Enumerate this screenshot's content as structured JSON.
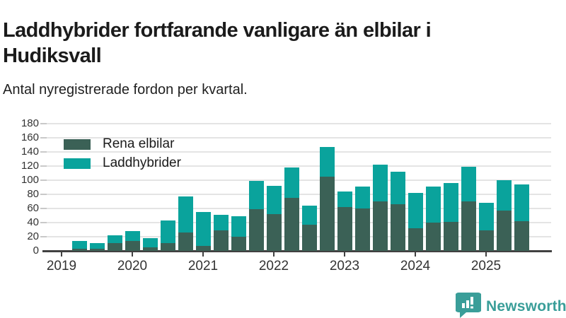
{
  "header": {
    "title": "Laddhybrider fortfarande vanligare än elbilar i Hudiksvall",
    "title_lines": [
      "Laddhybrider fortfarande vanligare än elbilar i",
      "Hudiksvall"
    ],
    "subtitle": "Antal nyregistrerade fordon per kvartal."
  },
  "legend": {
    "items": [
      {
        "label": "Rena elbilar",
        "color": "#3b6156"
      },
      {
        "label": "Laddhybrider",
        "color": "#0aa39c"
      }
    ]
  },
  "footer": {
    "brand": "Newsworthy",
    "brand_color": "#3a9e99",
    "logo_icon": "speech-bubble-bar-chart-icon"
  },
  "chart_data": {
    "type": "bar",
    "stacked": true,
    "title": "Laddhybrider fortfarande vanligare än elbilar i Hudiksvall",
    "subtitle": "Antal nyregistrerade fordon per kvartal.",
    "x": [
      "2019 Q1",
      "2019 Q2",
      "2019 Q3",
      "2019 Q4",
      "2020 Q1",
      "2020 Q2",
      "2020 Q3",
      "2020 Q4",
      "2021 Q1",
      "2021 Q2",
      "2021 Q3",
      "2021 Q4",
      "2022 Q1",
      "2022 Q2",
      "2022 Q3",
      "2022 Q4",
      "2023 Q1",
      "2023 Q2",
      "2023 Q3",
      "2023 Q4",
      "2024 Q1",
      "2024 Q2",
      "2024 Q3",
      "2024 Q4",
      "2025 Q1",
      "2025 Q2",
      "2025 Q3"
    ],
    "x_year_labels": [
      "2019",
      "2020",
      "2021",
      "2022",
      "2023",
      "2024",
      "2025"
    ],
    "series": [
      {
        "name": "Rena elbilar",
        "color": "#3b6156",
        "values": [
          0,
          3,
          3,
          11,
          14,
          5,
          11,
          26,
          7,
          29,
          20,
          59,
          52,
          75,
          37,
          105,
          62,
          60,
          70,
          66,
          32,
          40,
          41,
          70,
          29,
          57,
          42
        ]
      },
      {
        "name": "Laddhybrider",
        "color": "#0aa39c",
        "values": [
          0,
          11,
          8,
          11,
          14,
          13,
          32,
          51,
          48,
          22,
          29,
          40,
          40,
          43,
          27,
          42,
          22,
          31,
          52,
          46,
          50,
          51,
          55,
          49,
          39,
          43,
          52
        ]
      }
    ],
    "ylim": [
      0,
      180
    ],
    "yticks": [
      0,
      20,
      40,
      60,
      80,
      100,
      120,
      140,
      160,
      180
    ],
    "grid": "horizontal",
    "legend_position": "top-left"
  }
}
